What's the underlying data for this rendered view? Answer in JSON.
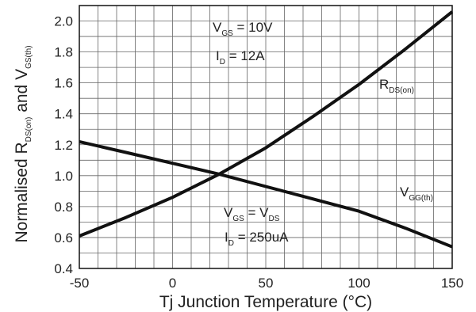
{
  "chart_data": {
    "type": "line",
    "xlabel": "Tj  Junction Temperature (°C)",
    "ylabel": {
      "main": "Normalised R",
      "sub1": "DS(on)",
      "mid": " and V",
      "sub2": "GS(th)"
    },
    "xlim": [
      -50,
      150
    ],
    "ylim": [
      0.4,
      2.1
    ],
    "x_ticks": [
      "-50",
      "0",
      "50",
      "100",
      "150"
    ],
    "y_ticks": [
      "0.4",
      "0.6",
      "0.8",
      "1.0",
      "1.2",
      "1.4",
      "1.6",
      "1.8",
      "2.0"
    ],
    "grid": true,
    "series": [
      {
        "name": "RDS(on)",
        "x": [
          -50,
          -25,
          0,
          25,
          50,
          75,
          100,
          125,
          150
        ],
        "y": [
          0.61,
          0.73,
          0.86,
          1.01,
          1.18,
          1.38,
          1.59,
          1.82,
          2.06
        ]
      },
      {
        "name": "VGS(th)",
        "x": [
          -50,
          -25,
          0,
          25,
          50,
          75,
          100,
          125,
          150
        ],
        "y": [
          1.22,
          1.15,
          1.08,
          1.01,
          0.93,
          0.85,
          0.77,
          0.66,
          0.54
        ]
      }
    ],
    "annotations": {
      "top_left": {
        "line1_pre": "V",
        "line1_sub": "GS",
        "line1_post": " = 10V",
        "line2_pre": "I",
        "line2_sub": "D",
        "line2_post": " = 12A"
      },
      "bottom_mid": {
        "line1_pre": "V",
        "line1_sub": "GS",
        "line1_mid": " = V",
        "line1_sub2": "DS",
        "line2_pre": "I",
        "line2_sub": "D",
        "line2_post": " = 250uA"
      },
      "rds_label": {
        "pre": "R",
        "sub": "DS(on)"
      },
      "vgs_label": {
        "pre": "V",
        "sub": "GG(th)"
      }
    }
  }
}
